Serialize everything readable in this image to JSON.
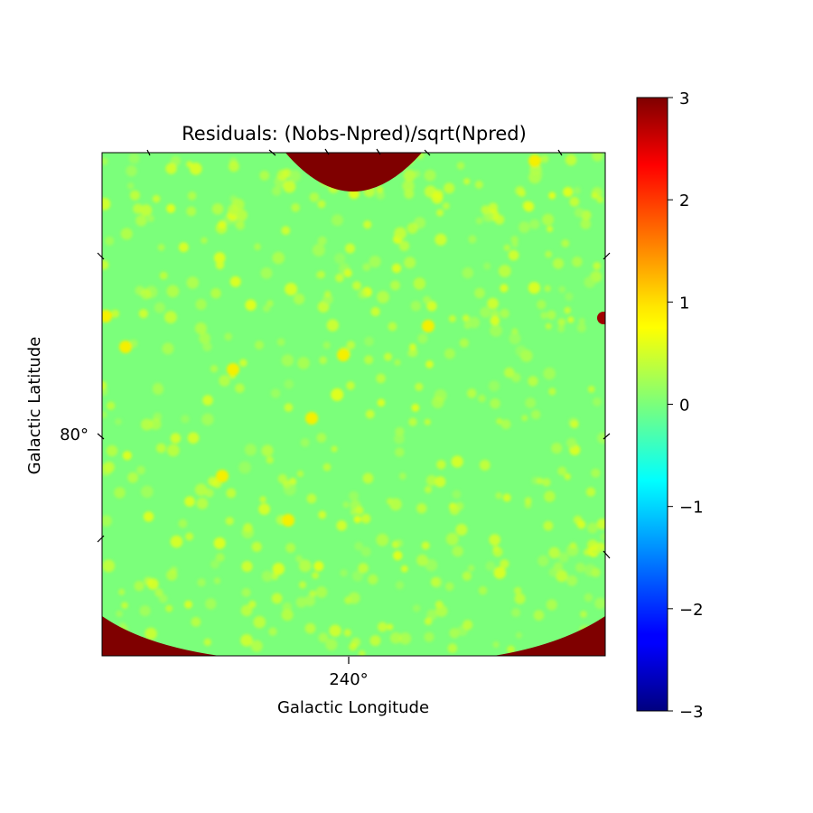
{
  "chart_data": {
    "type": "heatmap",
    "title": "Residuals: (Nobs-Npred)/sqrt(Npred)",
    "xlabel": "Galactic Longitude",
    "ylabel": "Galactic Latitude",
    "x_ticks": [
      "240°"
    ],
    "y_ticks": [
      "80°"
    ],
    "colormap": "jet",
    "colorbar": {
      "range": [
        -3,
        3
      ],
      "ticks": [
        3,
        2,
        1,
        0,
        -1,
        -2,
        -3
      ],
      "tick_labels": [
        "3",
        "2",
        "1",
        "0",
        "−1",
        "−2",
        "−3"
      ]
    },
    "background_value": 0,
    "masked_region_value": 3,
    "colors": {
      "background": "#7bff7b",
      "mask": "#7f0000"
    }
  }
}
